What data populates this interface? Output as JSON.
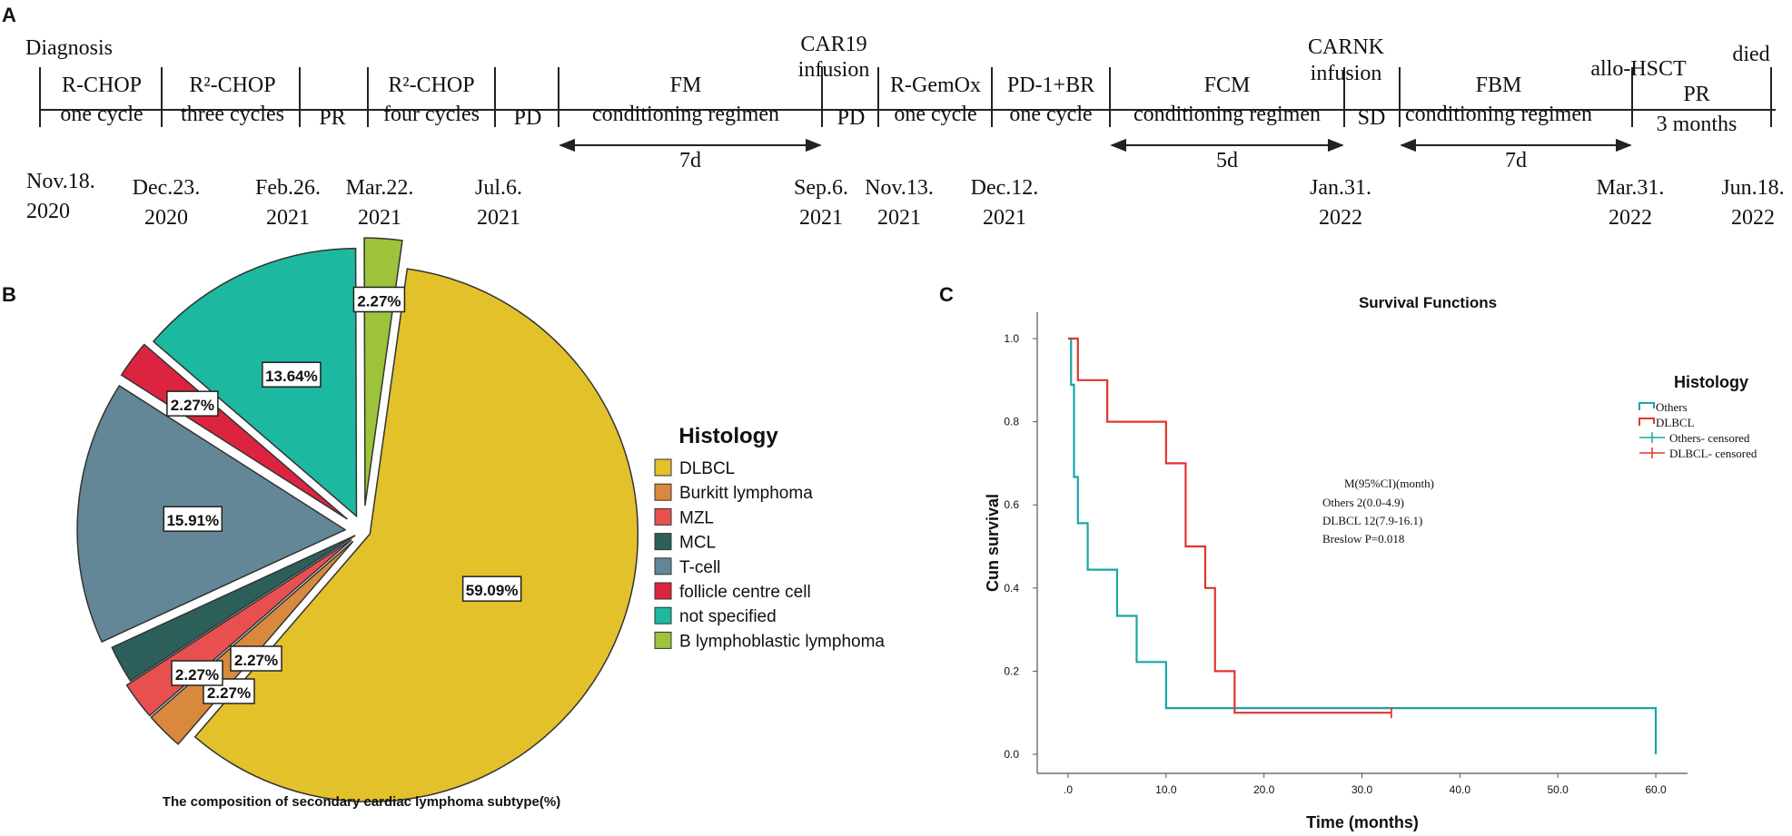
{
  "panels": {
    "a": "A",
    "b": "B",
    "c": "C"
  },
  "timeline": {
    "diagnosis_label": "Diagnosis",
    "died_label": "died",
    "phases": [
      {
        "lines": [
          "R-CHOP",
          "one cycle"
        ]
      },
      {
        "lines": [
          "R²-CHOP",
          "three cycles"
        ]
      },
      {
        "lines": [
          "PR"
        ]
      },
      {
        "lines": [
          "R²-CHOP",
          "four cycles"
        ]
      },
      {
        "lines": [
          "PD"
        ]
      },
      {
        "lines": [
          "FM",
          "conditioning regimen"
        ]
      },
      {
        "lines": [
          "PD"
        ]
      },
      {
        "lines": [
          "R-GemOx",
          "one cycle"
        ]
      },
      {
        "lines": [
          "PD-1+BR",
          "one cycle"
        ]
      },
      {
        "lines": [
          "FCM",
          "conditioning regimen"
        ]
      },
      {
        "lines": [
          "SD"
        ]
      },
      {
        "lines": [
          "FBM",
          "conditioning regimen"
        ]
      },
      {
        "lines": [
          "PR",
          "3 months"
        ]
      }
    ],
    "events": [
      {
        "lines": [
          "CAR19",
          "infusion"
        ]
      },
      {
        "lines": [
          "CARNK",
          "infusion"
        ]
      },
      {
        "lines": [
          "allo-HSCT"
        ]
      }
    ],
    "durations": [
      "7d",
      "5d",
      "7d"
    ],
    "dates": [
      {
        "lines": [
          "Nov.18.",
          "2020"
        ]
      },
      {
        "lines": [
          "Dec.23.",
          "2020"
        ]
      },
      {
        "lines": [
          "Feb.26.",
          "2021"
        ]
      },
      {
        "lines": [
          "Mar.22.",
          "2021"
        ]
      },
      {
        "lines": [
          "Jul.6.",
          "2021"
        ]
      },
      {
        "lines": [
          "Sep.6.",
          "2021"
        ]
      },
      {
        "lines": [
          "Nov.13.",
          "2021"
        ]
      },
      {
        "lines": [
          "Dec.12.",
          "2021"
        ]
      },
      {
        "lines": [
          "Jan.31.",
          "2022"
        ]
      },
      {
        "lines": [
          "Mar.31.",
          "2022"
        ]
      },
      {
        "lines": [
          "Jun.18.",
          "2022"
        ]
      }
    ]
  },
  "chart_data": [
    {
      "type": "pie",
      "title": "The composition of secondary cardiac lymphoma subtype(%)",
      "legend_title": "Histology",
      "legend_position": "right",
      "slices": [
        {
          "label": "DLBCL",
          "value": 59.09,
          "display": "59.09%",
          "color": "#E2C12B"
        },
        {
          "label": "Burkitt lymphoma",
          "value": 2.27,
          "display": "2.27%",
          "color": "#D8893E"
        },
        {
          "label": "MZL",
          "value": 2.27,
          "display": "2.27%",
          "color": "#E8504F"
        },
        {
          "label": "MCL",
          "value": 2.27,
          "display": "2.27%",
          "color": "#2D5F5A"
        },
        {
          "label": "T-cell",
          "value": 15.91,
          "display": "15.91%",
          "color": "#638796"
        },
        {
          "label": "follicle centre cell",
          "value": 2.27,
          "display": "2.27%",
          "color": "#DC2440"
        },
        {
          "label": "not specified",
          "value": 13.64,
          "display": "13.64%",
          "color": "#1CB8A0"
        },
        {
          "label": "B lymphoblastic lymphoma",
          "value": 2.27,
          "display": "2.27%",
          "color": "#9CC33A"
        }
      ]
    },
    {
      "type": "line",
      "subtype": "kaplan-meier",
      "title": "Survival Functions",
      "xlabel": "Time (months)",
      "ylabel": "Cun survival",
      "xlim": [
        0,
        60
      ],
      "ylim": [
        0,
        1
      ],
      "xticks": [
        {
          "v": 0,
          "t": ".0"
        },
        {
          "v": 10,
          "t": "10.0"
        },
        {
          "v": 20,
          "t": "20.0"
        },
        {
          "v": 30,
          "t": "30.0"
        },
        {
          "v": 40,
          "t": "40.0"
        },
        {
          "v": 50,
          "t": "50.0"
        },
        {
          "v": 60,
          "t": "60.0"
        }
      ],
      "yticks": [
        {
          "v": 0,
          "t": "0.0"
        },
        {
          "v": 0.2,
          "t": "0.2"
        },
        {
          "v": 0.4,
          "t": "0.4"
        },
        {
          "v": 0.6,
          "t": "0.6"
        },
        {
          "v": 0.8,
          "t": "0.8"
        },
        {
          "v": 1.0,
          "t": "1.0"
        }
      ],
      "legend_title": "Histology",
      "legend": [
        {
          "label": "Others",
          "kind": "step",
          "color": "#1AA5A5"
        },
        {
          "label": "DLBCL",
          "kind": "step",
          "color": "#E03530"
        },
        {
          "label": "Others- censored",
          "kind": "plus",
          "color": "#1AA5A5"
        },
        {
          "label": "DLBCL- censored",
          "kind": "plus",
          "color": "#E03530"
        }
      ],
      "series": [
        {
          "name": "Others",
          "color": "#1AA5A5",
          "x": [
            0,
            0.3,
            0.6,
            1,
            2,
            5,
            7,
            10,
            60,
            60
          ],
          "y": [
            1.0,
            0.889,
            0.667,
            0.556,
            0.444,
            0.333,
            0.222,
            0.111,
            0.111,
            0.0
          ]
        },
        {
          "name": "DLBCL",
          "color": "#E03530",
          "x": [
            0,
            1,
            4,
            10,
            12,
            14,
            15,
            17,
            33
          ],
          "y": [
            1.0,
            0.9,
            0.8,
            0.7,
            0.5,
            0.4,
            0.2,
            0.1,
            0.1
          ]
        }
      ],
      "censored": [
        {
          "series": "DLBCL",
          "x": 33,
          "y": 0.1
        }
      ],
      "stats": {
        "header": "M(95%CI)(month)",
        "rows": [
          "Others    2(0.0-4.9)",
          "DLBCL    12(7.9-16.1)",
          "Breslow  P=0.018"
        ]
      }
    }
  ]
}
